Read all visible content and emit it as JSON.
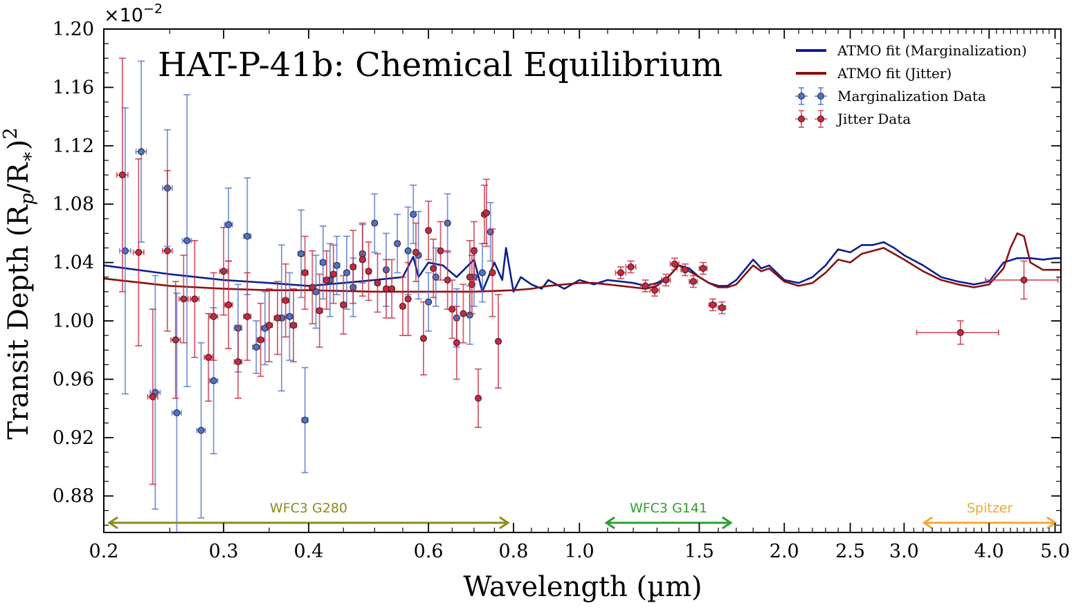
{
  "chart_data": {
    "type": "scatter",
    "title": "HAT-P-41b: Chemical Equilibrium",
    "xlabel": "Wavelength (µm)",
    "ylabel": "Transit Depth",
    "ylabel_math": "(R",
    "ylabel_sub_p": "p",
    "ylabel_slash": "/R",
    "ylabel_sub_star": "∗",
    "ylabel_close": ")",
    "ylabel_sup": "2",
    "y_multiplier_base": "×10",
    "y_multiplier_exp": "−2",
    "x_scale": "log",
    "xlim": [
      0.2,
      5.1
    ],
    "ylim": [
      0.855,
      1.2
    ],
    "x_ticks": [
      0.2,
      0.3,
      0.4,
      0.6,
      0.8,
      1.0,
      1.5,
      2.0,
      2.5,
      3.0,
      4.0,
      5.0
    ],
    "x_tick_labels": [
      "0.2",
      "0.3",
      "0.4",
      "0.6",
      "0.8",
      "1.0",
      "1.5",
      "2.0",
      "2.5",
      "3.0",
      "4.0",
      "5.0"
    ],
    "y_ticks": [
      0.88,
      0.92,
      0.96,
      1.0,
      1.04,
      1.08,
      1.12,
      1.16,
      1.2
    ],
    "y_tick_labels": [
      "0.88",
      "0.92",
      "0.96",
      "1.00",
      "1.04",
      "1.08",
      "1.12",
      "1.16",
      "1.20"
    ],
    "legend_position": "top-right",
    "grid": false,
    "legend": [
      {
        "label": "ATMO fit (Marginalization)",
        "kind": "line",
        "color": "#0a1f8f"
      },
      {
        "label": "ATMO fit (Jitter)",
        "kind": "line",
        "color": "#8b1010"
      },
      {
        "label": "Marginalization Data",
        "kind": "errorbar",
        "color": "#4f72c9",
        "edge": "#4a78d6"
      },
      {
        "label": "Jitter Data",
        "kind": "errorbar",
        "color": "#c8283f",
        "edge": "#d13a55"
      }
    ],
    "annotations": [
      {
        "label": "WFC3 G280",
        "x_start": 0.2,
        "x_end": 0.8,
        "color": "#8b8b1a"
      },
      {
        "label": "WFC3 G141",
        "x_start": 1.075,
        "x_end": 1.7,
        "color": "#2e9e2e"
      },
      {
        "label": "Spitzer",
        "x_start": 3.15,
        "x_end": 5.1,
        "color": "#f0a830"
      }
    ],
    "series": [
      {
        "name": "ATMO fit (Marginalization)",
        "kind": "line",
        "color": "#0a1f8f",
        "x": [
          0.2,
          0.25,
          0.3,
          0.35,
          0.4,
          0.45,
          0.5,
          0.55,
          0.57,
          0.58,
          0.6,
          0.63,
          0.66,
          0.7,
          0.72,
          0.75,
          0.77,
          0.78,
          0.8,
          0.82,
          0.85,
          0.88,
          0.9,
          0.95,
          1.0,
          1.05,
          1.1,
          1.15,
          1.2,
          1.25,
          1.3,
          1.35,
          1.4,
          1.45,
          1.5,
          1.55,
          1.6,
          1.65,
          1.7,
          1.8,
          1.85,
          1.9,
          2.0,
          2.1,
          2.2,
          2.3,
          2.4,
          2.5,
          2.6,
          2.7,
          2.8,
          2.9,
          3.0,
          3.2,
          3.4,
          3.6,
          3.8,
          4.0,
          4.2,
          4.4,
          4.6,
          4.8,
          5.0,
          5.1
        ],
        "y": [
          1.038,
          1.032,
          1.028,
          1.026,
          1.024,
          1.026,
          1.028,
          1.03,
          1.044,
          1.03,
          1.04,
          1.038,
          1.03,
          1.042,
          1.02,
          1.04,
          1.028,
          1.05,
          1.02,
          1.03,
          1.025,
          1.022,
          1.028,
          1.022,
          1.028,
          1.025,
          1.028,
          1.027,
          1.026,
          1.024,
          1.026,
          1.03,
          1.038,
          1.036,
          1.03,
          1.026,
          1.024,
          1.024,
          1.028,
          1.042,
          1.036,
          1.038,
          1.028,
          1.026,
          1.03,
          1.038,
          1.049,
          1.047,
          1.052,
          1.052,
          1.054,
          1.05,
          1.045,
          1.038,
          1.03,
          1.027,
          1.025,
          1.027,
          1.04,
          1.043,
          1.043,
          1.042,
          1.043,
          1.043
        ]
      },
      {
        "name": "ATMO fit (Jitter)",
        "kind": "line",
        "color": "#8b1010",
        "x": [
          0.2,
          0.25,
          0.3,
          0.35,
          0.4,
          0.5,
          0.6,
          0.7,
          0.8,
          0.85,
          0.9,
          0.95,
          1.0,
          1.05,
          1.1,
          1.15,
          1.2,
          1.25,
          1.3,
          1.35,
          1.4,
          1.45,
          1.5,
          1.55,
          1.6,
          1.65,
          1.7,
          1.8,
          1.85,
          1.9,
          2.0,
          2.1,
          2.2,
          2.3,
          2.4,
          2.5,
          2.6,
          2.7,
          2.8,
          2.9,
          3.0,
          3.2,
          3.4,
          3.6,
          3.8,
          4.0,
          4.2,
          4.3,
          4.4,
          4.5,
          4.6,
          4.8,
          5.0,
          5.1
        ],
        "y": [
          1.029,
          1.024,
          1.022,
          1.021,
          1.021,
          1.02,
          1.02,
          1.02,
          1.021,
          1.022,
          1.024,
          1.025,
          1.026,
          1.026,
          1.025,
          1.024,
          1.023,
          1.022,
          1.024,
          1.03,
          1.038,
          1.034,
          1.03,
          1.026,
          1.023,
          1.023,
          1.025,
          1.038,
          1.034,
          1.036,
          1.027,
          1.024,
          1.026,
          1.033,
          1.042,
          1.04,
          1.046,
          1.048,
          1.05,
          1.046,
          1.042,
          1.034,
          1.028,
          1.025,
          1.023,
          1.025,
          1.036,
          1.05,
          1.06,
          1.058,
          1.04,
          1.035,
          1.035,
          1.035
        ]
      },
      {
        "name": "Marginalization Data",
        "kind": "errorbar",
        "color": "#4f72c9",
        "x": [
          0.215,
          0.227,
          0.238,
          0.248,
          0.256,
          0.265,
          0.278,
          0.29,
          0.305,
          0.315,
          0.325,
          0.335,
          0.345,
          0.365,
          0.375,
          0.39,
          0.395,
          0.41,
          0.42,
          0.43,
          0.44,
          0.455,
          0.465,
          0.48,
          0.5,
          0.52,
          0.54,
          0.56,
          0.57,
          0.58,
          0.6,
          0.615,
          0.64,
          0.66,
          0.69,
          0.7,
          0.72,
          0.74
        ],
        "y": [
          1.048,
          1.116,
          0.951,
          1.091,
          0.937,
          1.055,
          0.925,
          0.959,
          1.066,
          0.995,
          1.058,
          0.982,
          0.995,
          1.002,
          1.003,
          1.046,
          0.932,
          1.02,
          1.04,
          1.028,
          1.038,
          1.033,
          1.023,
          1.046,
          1.067,
          1.035,
          1.053,
          1.048,
          1.073,
          1.045,
          1.013,
          1.03,
          1.067,
          1.002,
          1.004,
          1.03,
          1.033,
          1.061
        ],
        "yerr": [
          0.098,
          0.062,
          0.08,
          0.04,
          0.082,
          0.1,
          0.06,
          0.05,
          0.025,
          0.03,
          0.04,
          0.018,
          0.025,
          0.05,
          0.03,
          0.03,
          0.036,
          0.025,
          0.025,
          0.025,
          0.02,
          0.025,
          0.02,
          0.02,
          0.02,
          0.025,
          0.02,
          0.03,
          0.02,
          0.03,
          0.02,
          0.02,
          0.02,
          0.02,
          0.02,
          0.02,
          0.02,
          0.02
        ],
        "xerr": [
          0.004,
          0.004,
          0.004,
          0.004,
          0.004,
          0.004,
          0.004,
          0.004,
          0.004,
          0.004,
          0.004,
          0.004,
          0.004,
          0.004,
          0.004,
          0.004,
          0.004,
          0.004,
          0.004,
          0.004,
          0.004,
          0.004,
          0.004,
          0.004,
          0.004,
          0.004,
          0.004,
          0.004,
          0.004,
          0.004,
          0.004,
          0.004,
          0.004,
          0.004,
          0.004,
          0.004,
          0.004,
          0.004
        ]
      },
      {
        "name": "Jitter Data",
        "kind": "errorbar",
        "color": "#c8283f",
        "x": [
          0.213,
          0.225,
          0.236,
          0.248,
          0.255,
          0.262,
          0.272,
          0.285,
          0.29,
          0.3,
          0.305,
          0.315,
          0.325,
          0.34,
          0.35,
          0.36,
          0.37,
          0.38,
          0.395,
          0.405,
          0.415,
          0.425,
          0.435,
          0.45,
          0.465,
          0.48,
          0.49,
          0.505,
          0.52,
          0.53,
          0.55,
          0.56,
          0.575,
          0.59,
          0.6,
          0.61,
          0.625,
          0.64,
          0.65,
          0.66,
          0.675,
          0.69,
          0.695,
          0.7,
          0.71,
          0.725,
          0.73,
          0.745,
          0.76,
          1.15,
          1.19,
          1.25,
          1.29,
          1.34,
          1.38,
          1.43,
          1.47,
          1.52,
          1.57,
          1.62,
          3.63,
          4.5
        ],
        "y": [
          1.1,
          1.047,
          0.948,
          1.048,
          0.987,
          1.015,
          1.015,
          0.975,
          1.003,
          1.034,
          1.011,
          0.972,
          1.003,
          0.987,
          0.997,
          1.002,
          1.014,
          0.997,
          1.033,
          1.023,
          1.007,
          1.028,
          1.032,
          1.011,
          1.037,
          1.042,
          1.034,
          1.026,
          1.022,
          1.022,
          1.01,
          1.015,
          1.047,
          0.988,
          1.062,
          1.036,
          1.048,
          1.028,
          1.008,
          0.985,
          1.005,
          1.03,
          1.025,
          1.048,
          0.947,
          1.073,
          1.074,
          1.033,
          0.986,
          1.033,
          1.037,
          1.024,
          1.021,
          1.028,
          1.039,
          1.035,
          1.027,
          1.036,
          1.011,
          1.009,
          0.992,
          1.028
        ],
        "yerr": [
          0.08,
          0.064,
          0.06,
          0.055,
          0.04,
          0.03,
          0.04,
          0.03,
          0.03,
          0.03,
          0.03,
          0.025,
          0.03,
          0.025,
          0.025,
          0.025,
          0.025,
          0.025,
          0.025,
          0.025,
          0.025,
          0.02,
          0.02,
          0.02,
          0.025,
          0.025,
          0.02,
          0.02,
          0.02,
          0.02,
          0.02,
          0.025,
          0.02,
          0.025,
          0.02,
          0.02,
          0.02,
          0.02,
          0.02,
          0.025,
          0.02,
          0.025,
          0.02,
          0.02,
          0.02,
          0.02,
          0.023,
          0.03,
          0.032,
          0.004,
          0.004,
          0.004,
          0.004,
          0.004,
          0.004,
          0.004,
          0.004,
          0.004,
          0.004,
          0.004,
          0.008,
          0.013
        ],
        "xerr": [
          0.004,
          0.004,
          0.004,
          0.004,
          0.004,
          0.004,
          0.004,
          0.004,
          0.004,
          0.004,
          0.004,
          0.004,
          0.004,
          0.004,
          0.004,
          0.004,
          0.004,
          0.004,
          0.004,
          0.004,
          0.004,
          0.004,
          0.004,
          0.004,
          0.004,
          0.004,
          0.004,
          0.004,
          0.004,
          0.004,
          0.004,
          0.004,
          0.004,
          0.004,
          0.004,
          0.004,
          0.004,
          0.004,
          0.004,
          0.004,
          0.004,
          0.004,
          0.004,
          0.004,
          0.004,
          0.004,
          0.004,
          0.004,
          0.004,
          0.02,
          0.02,
          0.02,
          0.02,
          0.02,
          0.02,
          0.02,
          0.02,
          0.02,
          0.02,
          0.02,
          0.5,
          0.55
        ]
      }
    ]
  }
}
